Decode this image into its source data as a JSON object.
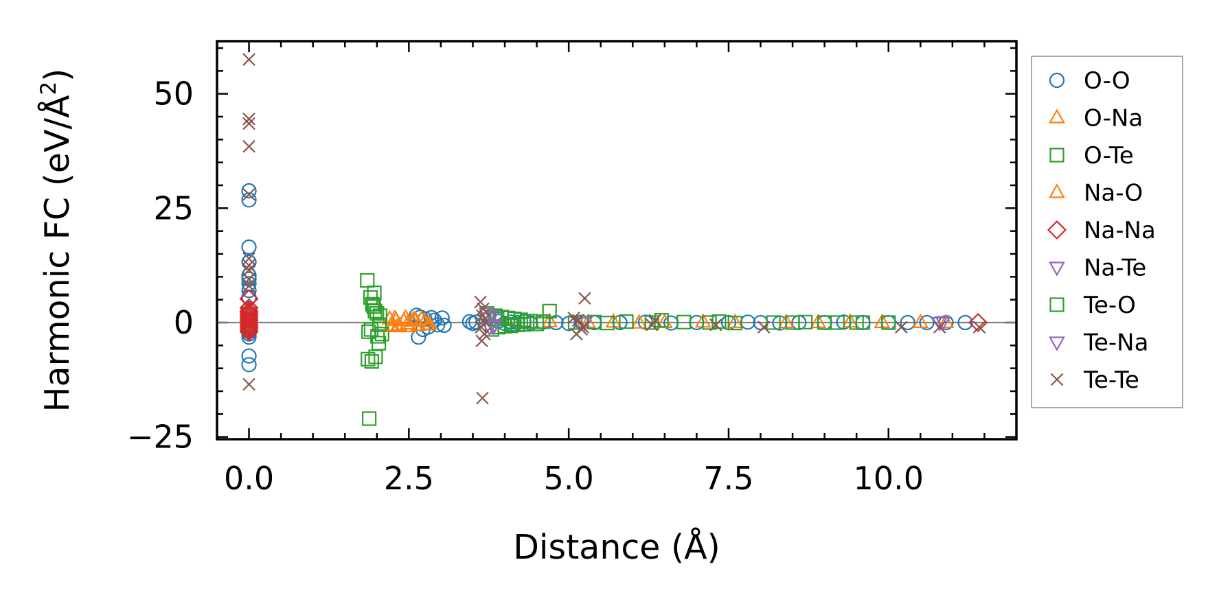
{
  "chart_data": {
    "type": "scatter",
    "title": "",
    "xlabel": "Distance (Å)",
    "ylabel_main": "Harmonic FC (eV/Å",
    "ylabel_sup": "2",
    "ylabel_end": ")",
    "xlim": [
      -0.5,
      12.0
    ],
    "ylim": [
      -25.5,
      61.5
    ],
    "x_ticks": [
      {
        "value": 0.0,
        "label": "0.0"
      },
      {
        "value": 2.5,
        "label": "2.5"
      },
      {
        "value": 5.0,
        "label": "5.0"
      },
      {
        "value": 7.5,
        "label": "7.5"
      },
      {
        "value": 10.0,
        "label": "10.0"
      }
    ],
    "y_ticks": [
      {
        "value": -25,
        "label": "−25"
      },
      {
        "value": 0,
        "label": "0"
      },
      {
        "value": 25,
        "label": "25"
      },
      {
        "value": 50,
        "label": "50"
      }
    ],
    "zero_line": 0,
    "legend_position": "outside-right",
    "series": [
      {
        "name": "O-O",
        "marker": "circle",
        "color": "#1f77b4",
        "x": [
          0,
          0,
          0,
          0,
          0,
          0,
          0,
          0,
          0,
          0,
          0,
          0,
          0,
          0,
          0,
          0,
          0,
          0,
          0,
          2.62,
          2.65,
          2.68,
          2.72,
          2.75,
          2.8,
          2.85,
          2.9,
          2.95,
          3.02,
          3.05,
          3.45,
          3.5,
          3.55,
          3.9,
          4.0,
          4.1,
          4.2,
          4.3,
          4.4,
          4.6,
          4.8,
          5.0,
          5.2,
          5.4,
          5.8,
          6.2,
          6.6,
          7.0,
          7.5,
          7.8,
          8.0,
          8.3,
          8.6,
          9.0,
          9.3,
          9.6,
          10.0,
          10.3,
          10.6,
          10.9,
          11.2
        ],
        "y": [
          28.8,
          26.8,
          16.5,
          13.2,
          10.3,
          9.5,
          8.5,
          7.0,
          5.5,
          3.0,
          1.8,
          0.5,
          -1.0,
          -1.5,
          -2.0,
          -2.5,
          -3.2,
          -7.3,
          -9.2,
          1.6,
          -3.2,
          1.2,
          -1.5,
          0.8,
          -1.0,
          1.1,
          0.5,
          -0.5,
          1.0,
          -0.6,
          0.2,
          -0.2,
          0.1,
          0.3,
          -0.2,
          0.1,
          0.0,
          0.2,
          -0.1,
          0.1,
          0.0,
          -0.2,
          0.1,
          0.0,
          0.0,
          0.1,
          -0.1,
          0.0,
          0.0,
          0.1,
          0.0,
          -0.1,
          0.0,
          0.0,
          0.1,
          0.0,
          0.0,
          0.0,
          0.0,
          0.0,
          0.0
        ]
      },
      {
        "name": "O-Na",
        "marker": "triangle-up",
        "color": "#ff7f0e",
        "x": [
          2.2,
          2.25,
          2.3,
          2.35,
          2.45,
          2.5,
          2.55,
          2.6,
          2.7,
          2.8,
          4.7,
          5.3,
          5.7,
          6.1,
          6.5,
          7.1,
          7.6,
          8.4,
          8.9,
          9.4,
          9.9,
          10.5,
          10.9
        ],
        "y": [
          0.8,
          -0.8,
          0.5,
          -0.6,
          1.0,
          -0.9,
          0.3,
          0.6,
          0.8,
          -0.5,
          0.2,
          0.0,
          0.1,
          -0.1,
          0.0,
          0.1,
          0.0,
          0.0,
          0.0,
          0.1,
          0.0,
          0.0,
          0.0
        ]
      },
      {
        "name": "O-Te",
        "marker": "square",
        "color": "#2ca02c",
        "x": [
          1.85,
          1.88,
          1.9,
          1.92,
          1.95,
          1.98,
          2.0,
          2.03,
          2.05,
          2.08,
          1.87,
          1.93,
          2.01,
          1.86,
          1.96,
          3.72,
          3.8,
          3.85,
          3.9,
          3.95,
          4.0,
          4.05,
          4.1,
          4.15,
          4.2,
          4.25,
          4.3,
          4.4,
          4.5,
          4.6,
          4.7,
          5.1,
          5.4,
          5.6,
          5.9,
          6.3,
          6.8,
          7.2,
          7.6,
          8.2,
          8.7,
          9.0,
          9.2,
          9.6,
          10.0
        ],
        "y": [
          9.2,
          -21.0,
          5.5,
          -8.5,
          3.5,
          -7.5,
          2.0,
          -4.5,
          1.5,
          -2.5,
          -2.0,
          4.0,
          -3.0,
          -8.0,
          6.5,
          2.0,
          -1.5,
          1.5,
          -1.0,
          1.2,
          -0.8,
          1.0,
          -0.7,
          0.8,
          -0.5,
          0.6,
          -0.4,
          0.3,
          -0.3,
          0.2,
          2.5,
          0.0,
          0.1,
          -0.1,
          0.2,
          0.0,
          0.1,
          0.0,
          -0.1,
          0.0,
          0.1,
          0.0,
          0.0,
          0.0,
          0.0
        ]
      },
      {
        "name": "Na-O",
        "marker": "triangle-up",
        "color": "#ff7f0e",
        "x": [
          2.22,
          2.28,
          2.32,
          2.42,
          2.48,
          2.58,
          2.65,
          2.75,
          2.82
        ],
        "y": [
          -0.7,
          0.9,
          -0.9,
          0.4,
          -0.3,
          0.7,
          -0.6,
          0.2,
          -0.4
        ]
      },
      {
        "name": "Na-Na",
        "marker": "diamond",
        "color": "#d62728",
        "x": [
          0,
          0,
          0,
          0,
          0,
          0,
          0,
          0,
          0,
          0,
          0,
          0,
          11.4
        ],
        "y": [
          5.2,
          3.2,
          2.5,
          2.0,
          1.5,
          1.0,
          0.5,
          0.0,
          -0.5,
          -1.0,
          -1.5,
          -2.0,
          0.0
        ]
      },
      {
        "name": "Na-Te",
        "marker": "triangle-down",
        "color": "#9467bd",
        "x": [
          3.72,
          3.76,
          3.8,
          3.84,
          5.25,
          10.85
        ],
        "y": [
          2.0,
          -1.0,
          1.5,
          -0.5,
          0.0,
          0.2
        ]
      },
      {
        "name": "Te-O",
        "marker": "square",
        "color": "#2ca02c",
        "x": [
          1.91,
          1.97,
          2.04,
          3.88,
          4.12,
          4.35,
          6.45,
          7.35,
          8.5,
          9.5
        ],
        "y": [
          -1.5,
          2.5,
          -0.5,
          0.8,
          -0.4,
          0.3,
          0.5,
          0.2,
          0.0,
          0.0
        ]
      },
      {
        "name": "Te-Na",
        "marker": "triangle-down",
        "color": "#9467bd",
        "x": [
          3.74,
          3.82,
          10.8
        ],
        "y": [
          1.0,
          -0.8,
          0.0
        ]
      },
      {
        "name": "Te-Te",
        "marker": "x",
        "color": "#8c564b",
        "x": [
          0,
          0,
          0,
          0,
          0,
          0,
          0,
          0,
          0,
          0,
          0,
          3.62,
          3.64,
          3.66,
          3.68,
          3.65,
          3.63,
          3.67,
          3.65,
          5.08,
          5.12,
          5.15,
          5.2,
          5.25,
          5.22,
          6.3,
          6.35,
          7.3,
          8.05,
          10.2,
          10.8,
          11.42
        ],
        "y": [
          57.5,
          44.5,
          43.5,
          38.5,
          28.0,
          14.0,
          12.5,
          11.5,
          9.5,
          8.0,
          -13.5,
          4.5,
          -4.0,
          3.0,
          -2.5,
          1.5,
          -1.0,
          0.5,
          -16.5,
          1.0,
          -2.5,
          0.5,
          -1.5,
          5.3,
          -1.0,
          -0.5,
          0.5,
          -0.5,
          -1.0,
          -1.0,
          -1.0,
          -1.0
        ]
      }
    ]
  }
}
